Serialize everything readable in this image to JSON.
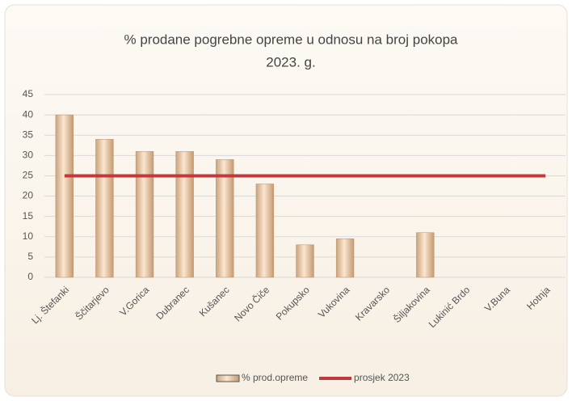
{
  "chart_data": {
    "type": "bar",
    "title": [
      "% prodane pogrebne opreme u odnosu na broj pokopa",
      "2023. g."
    ],
    "categories": [
      "Lj. Štefanki",
      "Ščitarjevo",
      "V.Gorica",
      "Dubranec",
      "Kušanec",
      "Novo Čiče",
      "Pokupsko",
      "Vukovina",
      "Kravarsko",
      "Šiljakovina",
      "Lukinić Brdo",
      "V.Buna",
      "Hotnja"
    ],
    "series": [
      {
        "name": "% prod.opreme",
        "type": "bar",
        "color": "#e8c4a0",
        "values": [
          40,
          34,
          31,
          31,
          29,
          23,
          8,
          9.5,
          0,
          11,
          0,
          0,
          0
        ]
      },
      {
        "name": "prosjek 2023",
        "type": "line",
        "color": "#c0393c",
        "values": [
          25,
          25,
          25,
          25,
          25,
          25,
          25,
          25,
          25,
          25,
          25,
          25,
          25
        ]
      }
    ],
    "ylim": [
      0,
      45
    ],
    "yticks": [
      0,
      5,
      10,
      15,
      20,
      25,
      30,
      35,
      40,
      45
    ],
    "grid": true,
    "legend": "bottom"
  }
}
